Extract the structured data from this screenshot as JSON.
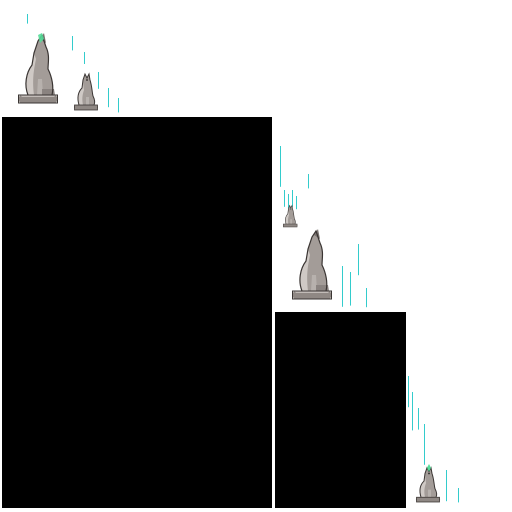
{
  "scene": {
    "background_color": "#ffffff",
    "panel_color": "#000000",
    "sparkle_color": "#33cccc",
    "glow_color": "#55dd99"
  },
  "sprites": [
    {
      "name": "wolf-statue-howling-glow-large",
      "icon": "wolf-statue-icon",
      "variant": "howling-glow"
    },
    {
      "name": "wolf-statue-small",
      "icon": "wolf-statue-icon",
      "variant": "plain"
    },
    {
      "name": "wolf-statue-tiny",
      "icon": "wolf-statue-icon",
      "variant": "plain"
    },
    {
      "name": "wolf-statue-howling-large",
      "icon": "wolf-statue-icon",
      "variant": "howling"
    },
    {
      "name": "wolf-statue-small-glow",
      "icon": "wolf-statue-icon",
      "variant": "glow"
    }
  ],
  "panels": [
    {
      "name": "black-panel-large"
    },
    {
      "name": "black-panel-medium"
    }
  ]
}
